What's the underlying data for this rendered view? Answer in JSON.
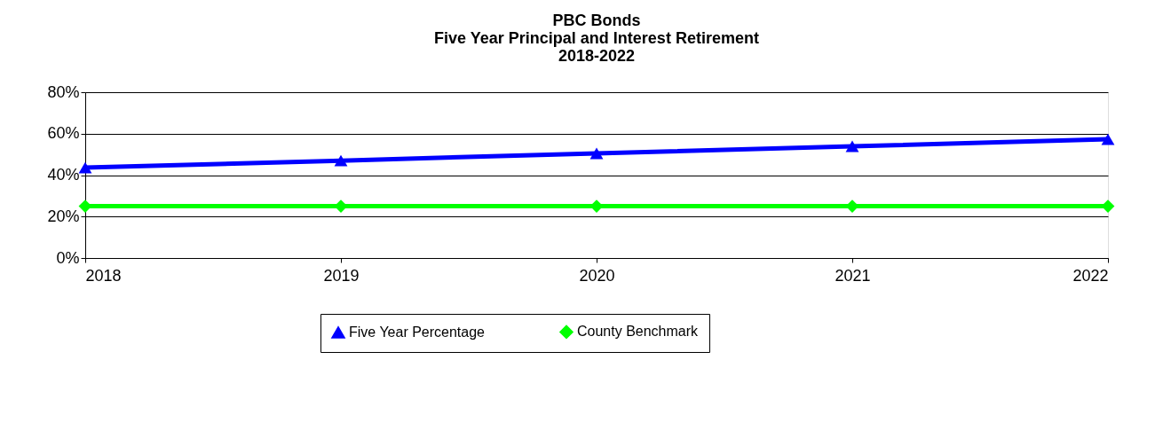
{
  "chart_data": {
    "type": "line",
    "title": "PBC Bonds\nFive Year Principal and Interest Retirement\n2018-2022",
    "x": [
      2018,
      2019,
      2020,
      2021,
      2022
    ],
    "series": [
      {
        "name": "Five Year Percentage",
        "color": "#0000ff",
        "marker": "triangle",
        "values": [
          43.6,
          47,
          50.5,
          53.9,
          57.3
        ]
      },
      {
        "name": "County Benchmark",
        "color": "#00ff00",
        "marker": "diamond",
        "values": [
          25,
          25,
          25,
          25,
          25
        ]
      }
    ],
    "xlim": [
      2018,
      2022
    ],
    "xticks": [
      2018,
      2019,
      2020,
      2021,
      2022
    ],
    "ylim": [
      0,
      80
    ],
    "yticks": [
      {
        "value": 0,
        "label": "0%"
      },
      {
        "value": 20,
        "label": "20%"
      },
      {
        "value": 40,
        "label": "40%"
      },
      {
        "value": 60,
        "label": "60%"
      },
      {
        "value": 80,
        "label": "80%"
      }
    ],
    "grid": "y",
    "legend": "bottom",
    "line_style": "solid"
  }
}
